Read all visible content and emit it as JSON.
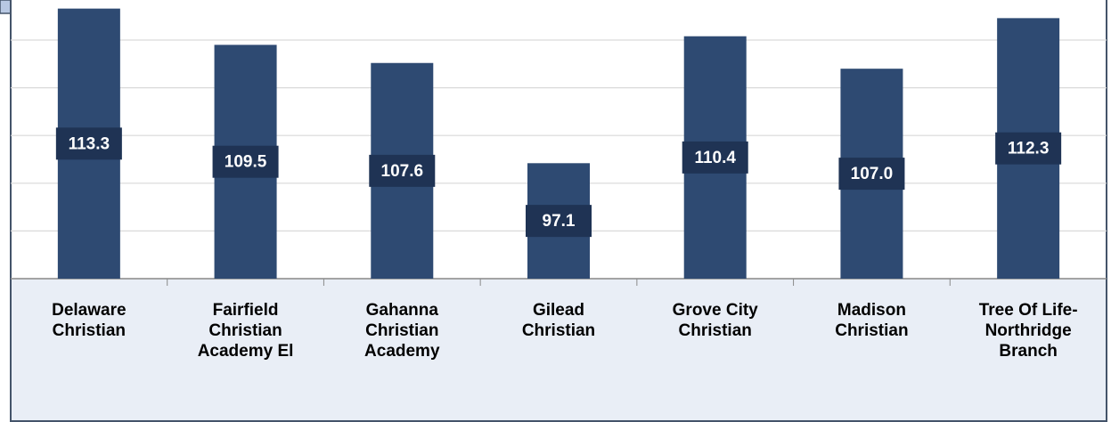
{
  "chart_data": {
    "type": "bar",
    "categories": [
      "Delaware Christian",
      "Fairfield Christian Academy El",
      "Gahanna Christian Academy",
      "Gilead Christian",
      "Grove City Christian",
      "Madison Christian",
      "Tree Of Life-Northridge Branch"
    ],
    "values": [
      113.3,
      109.5,
      107.6,
      97.1,
      110.4,
      107.0,
      112.3
    ],
    "value_labels": [
      "113.3",
      "109.5",
      "107.6",
      "97.1",
      "110.4",
      "107.0",
      "112.3"
    ],
    "color": "#2e4a72",
    "ylim": [
      85,
      114.2
    ],
    "yticks": [
      85,
      90,
      95,
      100,
      105,
      110
    ],
    "grid": true
  }
}
